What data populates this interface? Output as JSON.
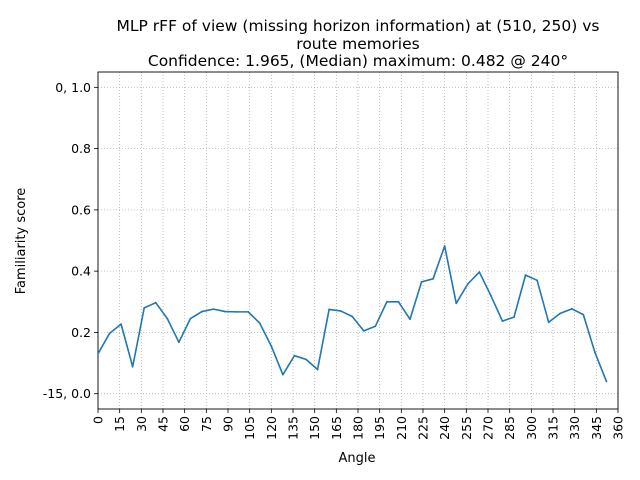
{
  "chart_data": {
    "type": "line",
    "title_lines": [
      "MLP rFF of view (missing horizon information) at (510, 250) vs",
      "route memories",
      "Confidence: 1.965, (Median) maximum: 0.482 @ 240°"
    ],
    "xlabel": "Angle",
    "ylabel": "Familiarity score",
    "xlim": [
      0,
      360
    ],
    "ylim": [
      -0.05,
      1.05
    ],
    "grid": true,
    "x_ticks": [
      0,
      15,
      30,
      45,
      60,
      75,
      90,
      105,
      120,
      135,
      150,
      165,
      180,
      195,
      210,
      225,
      240,
      255,
      270,
      285,
      300,
      315,
      330,
      345,
      360
    ],
    "y_ticks": [
      {
        "value": 0.0,
        "label": "-15, 0.0"
      },
      {
        "value": 0.2,
        "label": "0.2"
      },
      {
        "value": 0.4,
        "label": "0.4"
      },
      {
        "value": 0.6,
        "label": "0.6"
      },
      {
        "value": 0.8,
        "label": "0.8"
      },
      {
        "value": 1.0,
        "label": "0, 1.0"
      }
    ],
    "series": [
      {
        "color": "#1f77b4",
        "x": [
          0,
          8,
          16,
          24,
          32,
          40,
          48,
          56,
          64,
          72,
          80,
          88,
          96,
          104,
          112,
          120,
          128,
          136,
          144,
          152,
          160,
          168,
          176,
          184,
          192,
          200,
          208,
          216,
          224,
          232,
          240,
          248,
          256,
          264,
          272,
          280,
          288,
          296,
          304,
          312,
          320,
          328,
          336,
          344,
          352
        ],
        "y": [
          0.13,
          0.197,
          0.227,
          0.088,
          0.28,
          0.297,
          0.245,
          0.168,
          0.245,
          0.268,
          0.276,
          0.268,
          0.267,
          0.267,
          0.23,
          0.155,
          0.062,
          0.124,
          0.112,
          0.079,
          0.275,
          0.27,
          0.252,
          0.205,
          0.22,
          0.3,
          0.3,
          0.243,
          0.365,
          0.375,
          0.482,
          0.295,
          0.358,
          0.397,
          0.32,
          0.237,
          0.25,
          0.387,
          0.37,
          0.233,
          0.262,
          0.277,
          0.258,
          0.135,
          0.04
        ]
      }
    ]
  }
}
